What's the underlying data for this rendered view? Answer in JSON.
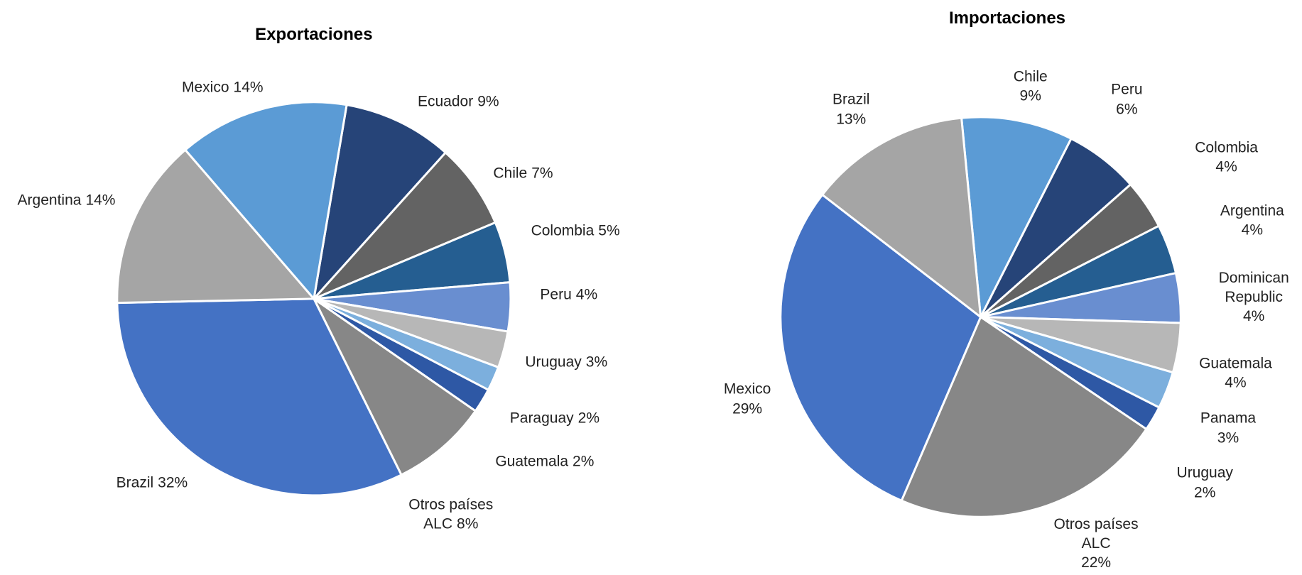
{
  "chart_data": [
    {
      "type": "pie",
      "title": "Exportaciones",
      "categories": [
        "Ecuador",
        "Chile",
        "Colombia",
        "Peru",
        "Uruguay",
        "Paraguay",
        "Guatemala",
        "Otros países ALC",
        "Brazil",
        "Argentina",
        "Mexico"
      ],
      "values": [
        9,
        7,
        5,
        4,
        3,
        2,
        2,
        8,
        32,
        14,
        14
      ],
      "value_labels": [
        "9%",
        "7%",
        "5%",
        "4%",
        "3%",
        "2%",
        "2%",
        "8%",
        "32%",
        "14%",
        "14%"
      ],
      "colors": [
        "#264478",
        "#636363",
        "#255e91",
        "#698ed0",
        "#b7b7b7",
        "#7cafdd",
        "#2e58a5",
        "#878787",
        "#4472c4",
        "#a5a5a5",
        "#5b9bd5"
      ]
    },
    {
      "type": "pie",
      "title": "Importaciones",
      "categories": [
        "Chile",
        "Peru",
        "Colombia",
        "Argentina",
        "Dominican Republic",
        "Guatemala",
        "Panama",
        "Uruguay",
        "Otros países ALC",
        "Mexico",
        "Brazil"
      ],
      "values": [
        9,
        6,
        4,
        4,
        4,
        4,
        3,
        2,
        22,
        29,
        13
      ],
      "value_labels": [
        "9%",
        "6%",
        "4%",
        "4%",
        "4%",
        "4%",
        "3%",
        "2%",
        "22%",
        "29%",
        "13%"
      ],
      "colors": [
        "#5b9bd5",
        "#264478",
        "#636363",
        "#255e91",
        "#698ed0",
        "#b7b7b7",
        "#7cafdd",
        "#2e58a5",
        "#878787",
        "#4472c4",
        "#a5a5a5"
      ]
    }
  ]
}
